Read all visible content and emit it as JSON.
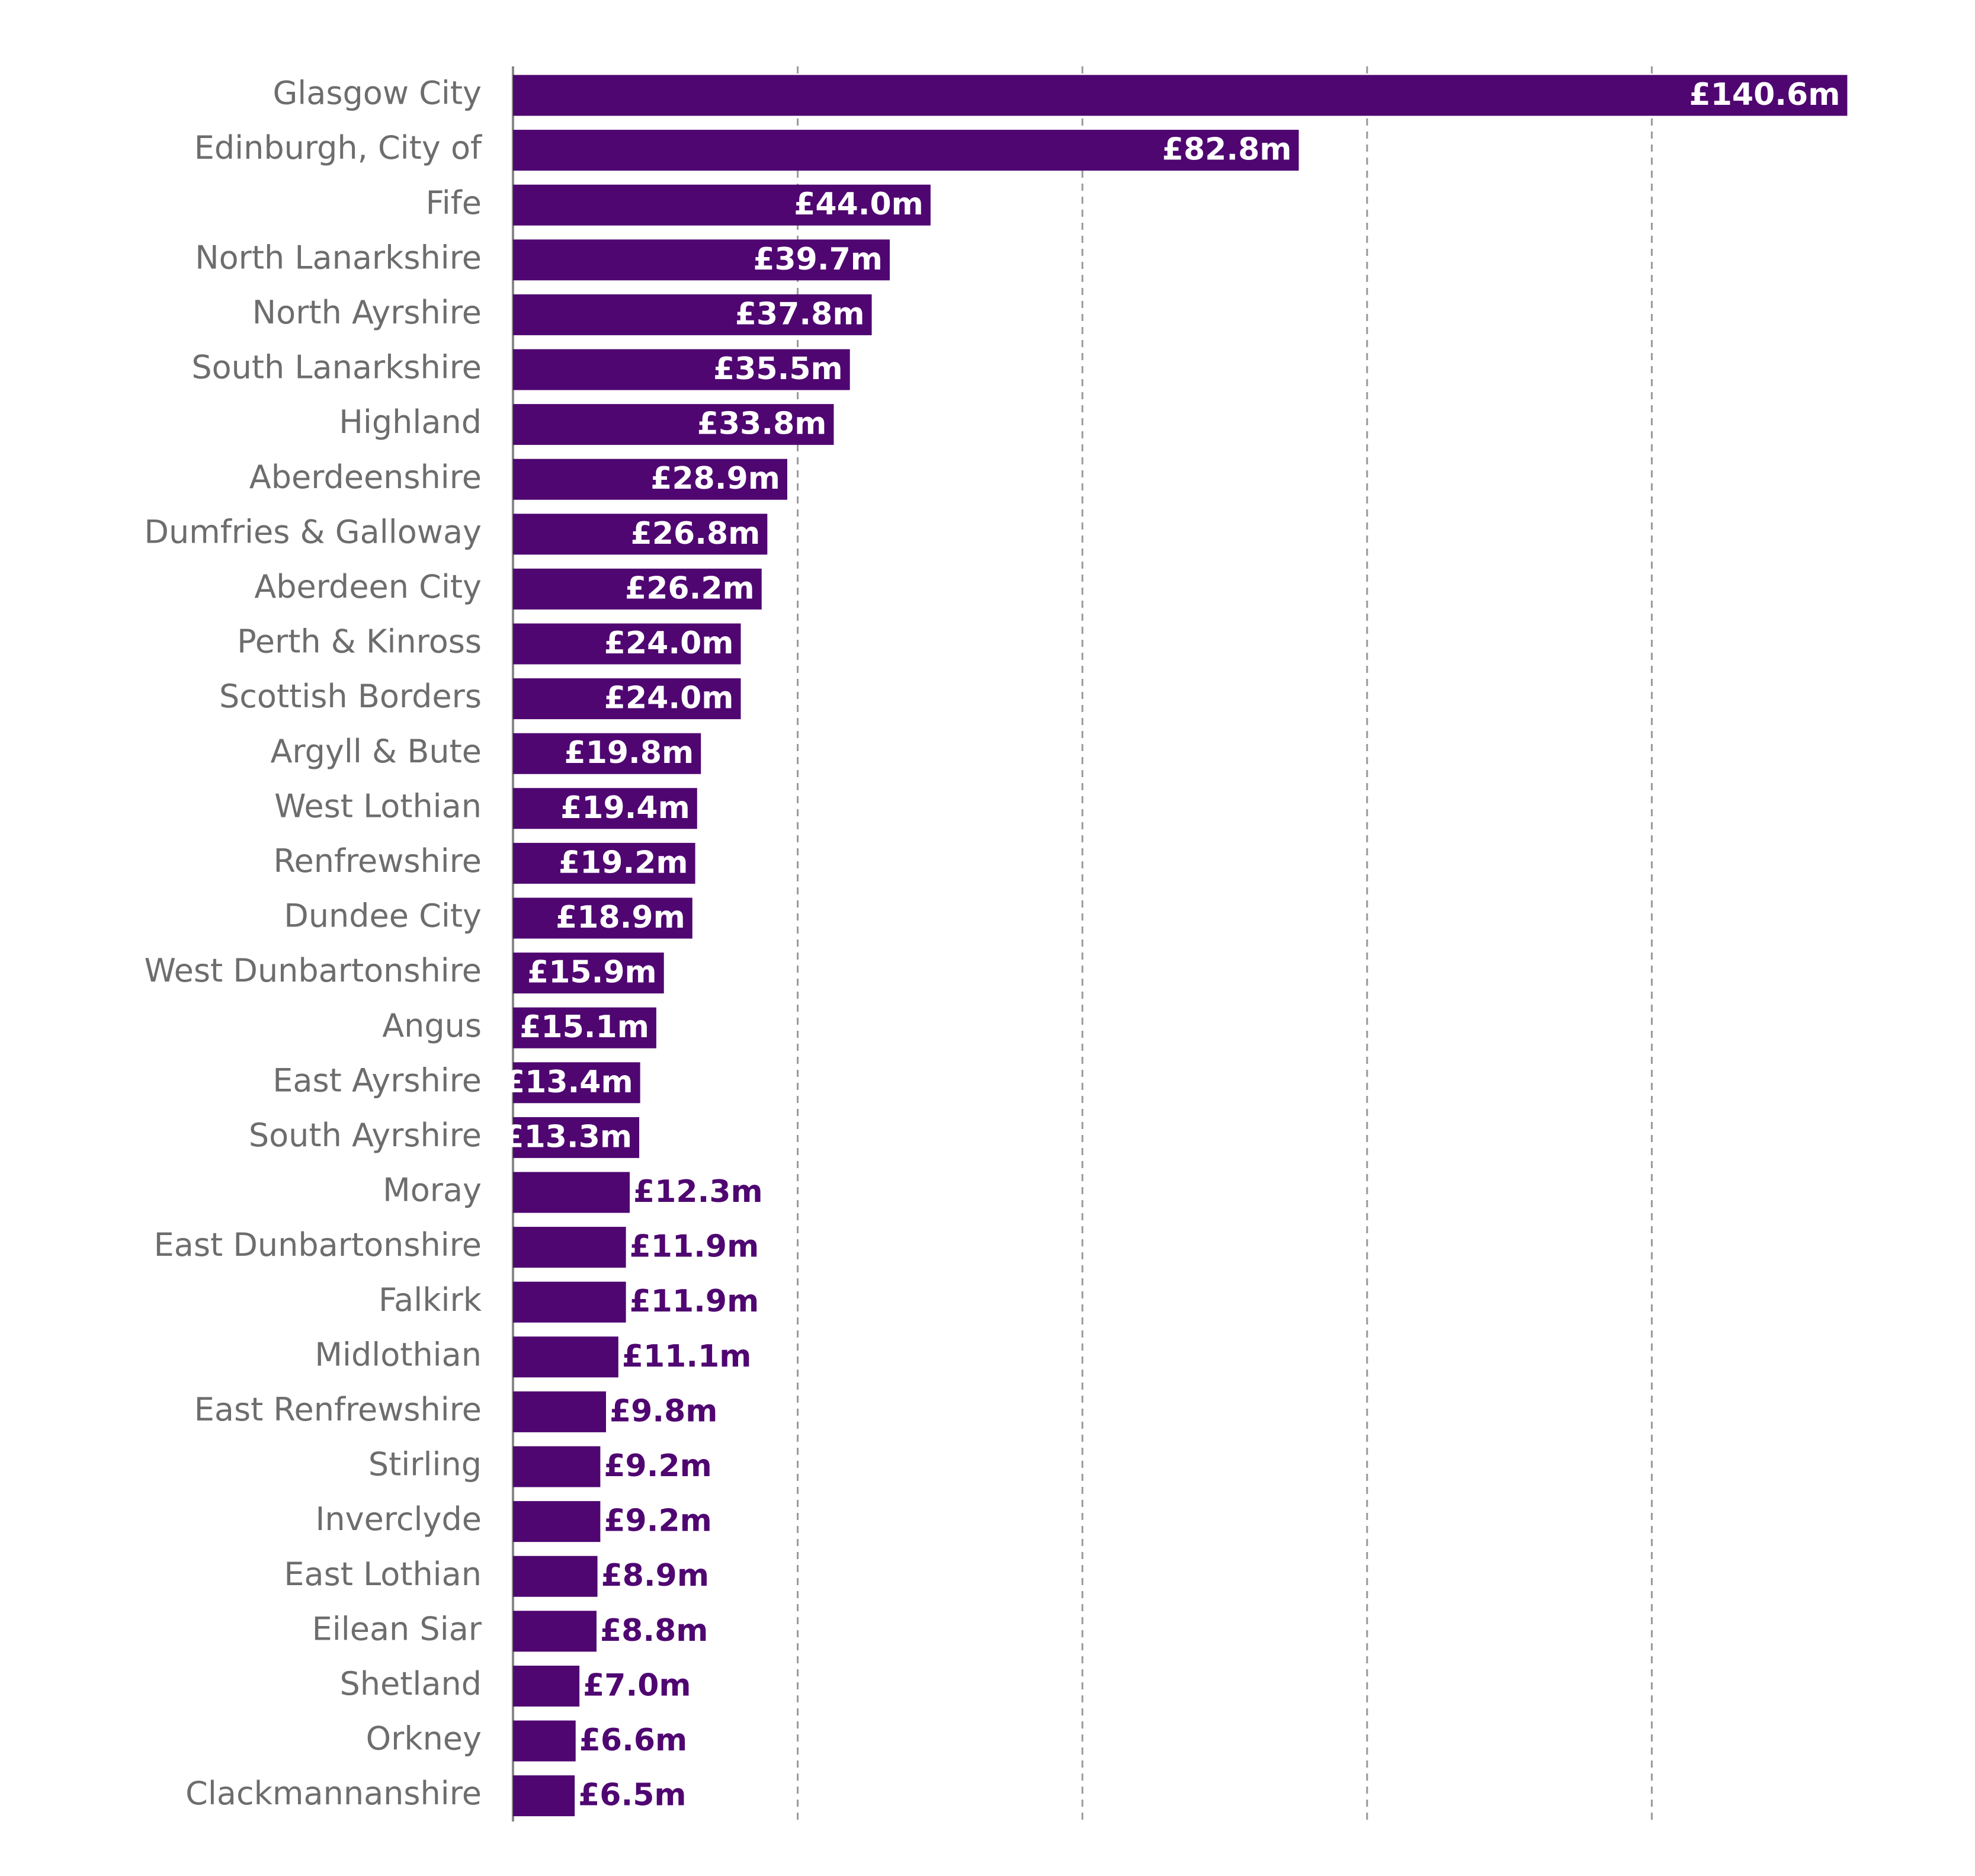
{
  "chart_data": {
    "type": "hbar",
    "categories": [
      "Glasgow City",
      "Edinburgh, City of",
      "Fife",
      "North Lanarkshire",
      "North Ayrshire",
      "South Lanarkshire",
      "Highland",
      "Aberdeenshire",
      "Dumfries & Galloway",
      "Aberdeen City",
      "Perth & Kinross",
      "Scottish Borders",
      "Argyll & Bute",
      "West Lothian",
      "Renfrewshire",
      "Dundee City",
      "West Dunbartonshire",
      "Angus",
      "East Ayrshire",
      "South Ayrshire",
      "Moray",
      "East Dunbartonshire",
      "Falkirk",
      "Midlothian",
      "East Renfrewshire",
      "Stirling",
      "Inverclyde",
      "East Lothian",
      "Eilean Siar",
      "Shetland",
      "Orkney",
      "Clackmannanshire"
    ],
    "values": [
      140.6,
      82.8,
      44.0,
      39.7,
      37.8,
      35.5,
      33.8,
      28.9,
      26.8,
      26.2,
      24.0,
      24.0,
      19.8,
      19.4,
      19.2,
      18.9,
      15.9,
      15.1,
      13.4,
      13.3,
      12.3,
      11.9,
      11.9,
      11.1,
      9.8,
      9.2,
      9.2,
      8.9,
      8.8,
      7.0,
      6.6,
      6.5
    ],
    "value_labels": [
      "£140.6m",
      "£82.8m",
      "£44.0m",
      "£39.7m",
      "£37.8m",
      "£35.5m",
      "£33.8m",
      "£28.9m",
      "£26.8m",
      "£26.2m",
      "£24.0m",
      "£24.0m",
      "£19.8m",
      "£19.4m",
      "£19.2m",
      "£18.9m",
      "£15.9m",
      "£15.1m",
      "£13.4m",
      "£13.3m",
      "£12.3m",
      "£11.9m",
      "£11.9m",
      "£11.1m",
      "£9.8m",
      "£9.2m",
      "£9.2m",
      "£8.9m",
      "£8.8m",
      "£7.0m",
      "£6.6m",
      "£6.5m"
    ],
    "color": "#4f0671",
    "xlim": [
      0,
      150
    ],
    "xticks": [
      0,
      30,
      60,
      90,
      120
    ],
    "grid": true
  }
}
